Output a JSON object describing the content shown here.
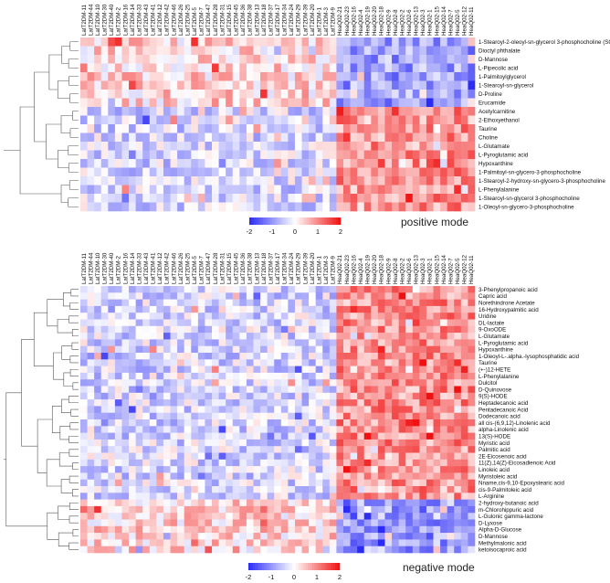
{
  "chart_data": [
    {
      "type": "heatmap",
      "caption": "positive mode",
      "columns": [
        "LatT2DM-11",
        "LatT2DM-44",
        "LatT2DM-10",
        "LatT2DM-30",
        "LatT2DM-40",
        "LatT2DM-2",
        "LatT2DM-16",
        "LatT2DM-14",
        "LatT2DM-33",
        "LatT2DM-43",
        "LatT2DM-41",
        "LatT2DM-12",
        "LatT2DM-42",
        "LatT2DM-46",
        "LatT2DM-26",
        "LatT2DM-25",
        "LatT2DM-5",
        "LatT2DM-7",
        "LatT2DM-47",
        "LatT2DM-28",
        "LatT2DM-31",
        "LatT2DM-15",
        "LatT2DM-45",
        "LatT2DM-36",
        "LatT2DM-38",
        "LatT2DM-13",
        "LatT2DM-18",
        "LatT2DM-37",
        "LatT2DM-17",
        "LatT2DM-34",
        "LatT2DM-24",
        "LatT2DM-29",
        "LatT2DM-39",
        "LatT2DM-20",
        "LatT2DM-1",
        "LatT2DM-3",
        "LatT2DM-9",
        "HeaQ02-21",
        "HeaQ02-23",
        "HeaQ02-16",
        "HeaQ02-4",
        "HeaQ02-19",
        "HeaQ02-20",
        "HeaQ02-18",
        "HeaQ02-9",
        "HeaQ02-8",
        "HeaQ02-2",
        "HeaQ02-6",
        "HeaQ02-13",
        "HeaQ02-3",
        "HeaQ02-1",
        "HeaQ02-15",
        "HeaQ02-14",
        "HeaQ02-7",
        "HeaQ02-5",
        "HeaQ02-12",
        "HeaQ02-11"
      ],
      "rows": [
        "1-Stearoyl-2-oleoyl-sn-glycerol 3-phosphocholine (SOPC)",
        "Dioctyl phthalate",
        "D-Mannose",
        "L-Pipecolic acid",
        "1-Palmitoylglycerol",
        "1-Stearoyl-sn-glycerol",
        "D-Proline",
        "Erucamide",
        "Acetylcarnitine",
        "2-Ethoxyethanol",
        "Taurine",
        "Choline",
        "L-Glutamate",
        "L-Pyroglutamic acid",
        "Hypoxanthine",
        "1-Palmitoyl-sn-glycero-3-phosphocholine",
        "1-Stearoyl-2-hydroxy-sn-glycero-3-phosphocholine",
        "L-Phenylalanine",
        "1-Stearoyl-sn-glycerol 3-phosphocholine",
        "1-Oleoyl-sn-glycero-3-phosphocholine"
      ],
      "row_pattern": [
        -1,
        -1,
        -1,
        -1,
        -1,
        -1,
        -1,
        -1,
        1,
        1,
        1,
        1,
        1,
        1,
        1,
        1,
        1,
        1,
        1,
        1
      ],
      "group_split_index": 37,
      "colorbar_ticks": [
        "-2",
        "-1",
        "0",
        "1",
        "2"
      ],
      "range": [
        -2,
        2
      ],
      "colors": {
        "low": "#2b2bf5",
        "mid": "#ffffff",
        "high": "#f01010"
      }
    },
    {
      "type": "heatmap",
      "caption": "negative mode",
      "columns": [
        "LatT2DM-11",
        "LatT2DM-44",
        "LatT2DM-10",
        "LatT2DM-30",
        "LatT2DM-40",
        "LatT2DM-2",
        "LatT2DM-16",
        "LatT2DM-14",
        "LatT2DM-33",
        "LatT2DM-43",
        "LatT2DM-41",
        "LatT2DM-12",
        "LatT2DM-42",
        "LatT2DM-46",
        "LatT2DM-26",
        "LatT2DM-25",
        "LatT2DM-5",
        "LatT2DM-7",
        "LatT2DM-47",
        "LatT2DM-28",
        "LatT2DM-31",
        "LatT2DM-15",
        "LatT2DM-45",
        "LatT2DM-36",
        "LatT2DM-38",
        "LatT2DM-13",
        "LatT2DM-18",
        "LatT2DM-37",
        "LatT2DM-17",
        "LatT2DM-34",
        "LatT2DM-24",
        "LatT2DM-29",
        "LatT2DM-39",
        "LatT2DM-20",
        "LatT2DM-1",
        "LatT2DM-3",
        "LatT2DM-9",
        "HeaQ02-21",
        "HeaQ02-23",
        "HeaQ02-16",
        "HeaQ02-4",
        "HeaQ02-19",
        "HeaQ02-20",
        "HeaQ02-18",
        "HeaQ02-9",
        "HeaQ02-8",
        "HeaQ02-2",
        "HeaQ02-6",
        "HeaQ02-13",
        "HeaQ02-3",
        "HeaQ02-1",
        "HeaQ02-15",
        "HeaQ02-14",
        "HeaQ02-7",
        "HeaQ02-5",
        "HeaQ02-12",
        "HeaQ02-11"
      ],
      "rows": [
        "3-Phenylpropanoic acid",
        "Capric acid",
        "Norethindrone Acetate",
        "16-Hydroxypalmitic acid",
        "Uridine",
        "DL-lactate",
        "9-OxoODE",
        "L-Glutamate",
        "L-Pyroglutamic acid",
        "Hypoxanthine",
        "1-Oleoyl-L-.alpha.-lysophosphatidic acid",
        "Taurine",
        "(+-)12-HETE",
        "L-Phenylalanine",
        "Dulcitol",
        "D-Quinovose",
        "9(S)-HODE",
        "Heptadecanoic acid",
        "Pentadecanoic Acid",
        "Dodecanoic acid",
        "all cis-(6,9,12)-Linolenic acid",
        "alpha-Linolenic acid",
        "13(S)-HODE",
        "Myristic acid",
        "Palmitic acid",
        "2E-Eicosenoic acid",
        "11(Z),14(Z)-Eicosadienoic Acid",
        "Linoleic acid",
        "Myristoleic acid",
        "Nname,cis-9,10-Epoxystearic acid",
        "cis-9-Palmitoleic acid",
        "L-Arginine",
        "2-hydroxy-butanoic acid",
        "m-Chlorohippuric acid",
        "L-Gulonic gamma-lactone",
        "D-Lyxose",
        "Alpha-D-Glucose",
        "D-Mannose",
        "Methylmalonic acid",
        "ketoisocaproic acid"
      ],
      "row_pattern": [
        1,
        1,
        1,
        1,
        1,
        1,
        1,
        1,
        1,
        1,
        1,
        1,
        1,
        1,
        1,
        1,
        1,
        1,
        1,
        1,
        1,
        1,
        1,
        1,
        1,
        1,
        1,
        1,
        1,
        1,
        1,
        1,
        -1,
        -1,
        -1,
        -1,
        -1,
        -1,
        -1,
        -1
      ],
      "group_split_index": 37,
      "colorbar_ticks": [
        "-2",
        "-1",
        "0",
        "1",
        "2"
      ],
      "range": [
        -2,
        2
      ],
      "colors": {
        "low": "#2b2bf5",
        "mid": "#ffffff",
        "high": "#f01010"
      }
    }
  ]
}
